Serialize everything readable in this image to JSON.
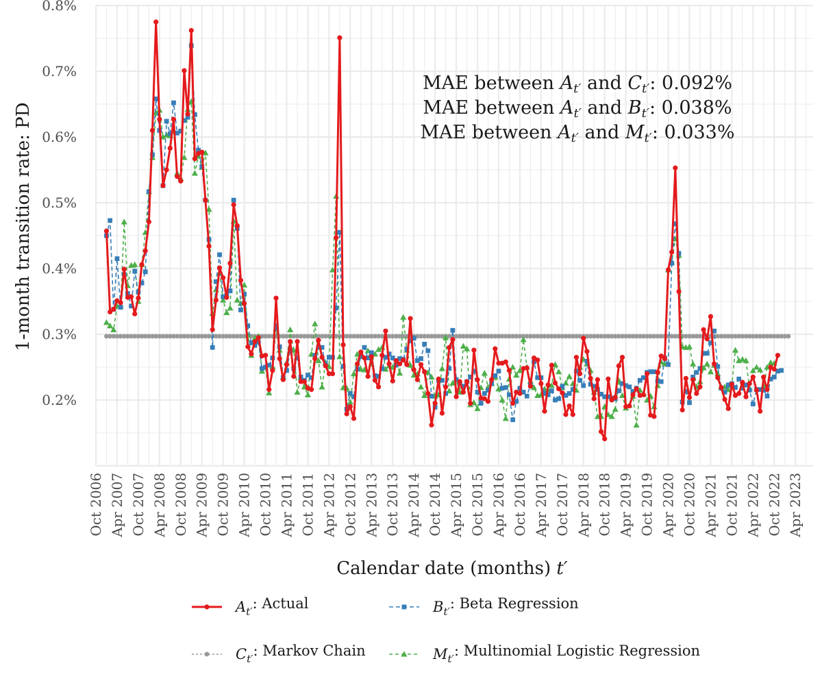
{
  "chart_data": {
    "type": "line",
    "title": "",
    "xlabel": "Calendar date (months) t′",
    "ylabel": "1-month transition rate: PD",
    "ylim": [
      0.1,
      0.8
    ],
    "y_ticks": [
      0.2,
      0.3,
      0.4,
      0.5,
      0.6,
      0.7,
      0.8
    ],
    "y_tick_labels": [
      "0.2%",
      "0.3%",
      "0.4%",
      "0.5%",
      "0.6%",
      "0.7%",
      "0.8%"
    ],
    "x_range_months": [
      -3,
      200
    ],
    "x_start": "Jan 2007",
    "x_ticks": [
      -3,
      3,
      9,
      15,
      21,
      27,
      33,
      39,
      45,
      51,
      57,
      63,
      69,
      75,
      81,
      87,
      93,
      99,
      105,
      111,
      117,
      123,
      129,
      135,
      141,
      147,
      153,
      159,
      165,
      171,
      177,
      183,
      189,
      195
    ],
    "x_tick_labels": [
      "Oct 2006",
      "Apr 2007",
      "Oct 2007",
      "Apr 2008",
      "Oct 2008",
      "Apr 2009",
      "Oct 2009",
      "Apr 2010",
      "Oct 2010",
      "Apr 2011",
      "Oct 2011",
      "Apr 2012",
      "Oct 2012",
      "Apr 2013",
      "Oct 2013",
      "Apr 2014",
      "Oct 2014",
      "Apr 2015",
      "Oct 2015",
      "Apr 2016",
      "Oct 2016",
      "Apr 2017",
      "Oct 2017",
      "Apr 2018",
      "Oct 2018",
      "Apr 2019",
      "Oct 2019",
      "Apr 2020",
      "Oct 2020",
      "Apr 2021",
      "Oct 2021",
      "Apr 2022",
      "Oct 2022",
      "Apr 2023"
    ],
    "annotations": [
      {
        "prefix": "MAE between ",
        "a_sym": "A",
        "mid": " and ",
        "b_sym": "C",
        "suffix": ": 0.092%"
      },
      {
        "prefix": "MAE between ",
        "a_sym": "A",
        "mid": " and ",
        "b_sym": "B",
        "suffix": ": 0.038%"
      },
      {
        "prefix": "MAE between ",
        "a_sym": "A",
        "mid": " and ",
        "b_sym": "M",
        "suffix": ": 0.033%"
      }
    ],
    "subscript": "t′",
    "series": [
      {
        "name": "Actual",
        "symbol": "A",
        "legend": ": Actual",
        "color": "#e41a1c",
        "dash": "solid",
        "marker": "circle",
        "values": [
          0.457,
          0.334,
          0.338,
          0.351,
          0.348,
          0.399,
          0.356,
          0.357,
          0.331,
          0.355,
          0.406,
          0.427,
          0.471,
          0.61,
          0.775,
          0.627,
          0.526,
          0.55,
          0.583,
          0.627,
          0.54,
          0.533,
          0.701,
          0.635,
          0.762,
          0.567,
          0.575,
          0.577,
          0.504,
          0.434,
          0.307,
          0.352,
          0.401,
          0.386,
          0.356,
          0.408,
          0.497,
          0.465,
          0.382,
          0.347,
          0.281,
          0.27,
          0.289,
          0.295,
          0.267,
          0.268,
          0.216,
          0.245,
          0.355,
          0.263,
          0.231,
          0.254,
          0.289,
          0.236,
          0.289,
          0.228,
          0.228,
          0.218,
          0.216,
          0.263,
          0.291,
          0.265,
          0.252,
          0.24,
          0.24,
          0.447,
          0.751,
          0.284,
          0.179,
          0.19,
          0.172,
          0.255,
          0.273,
          0.264,
          0.236,
          0.266,
          0.23,
          0.22,
          0.268,
          0.305,
          0.255,
          0.229,
          0.26,
          0.255,
          0.261,
          0.254,
          0.324,
          0.246,
          0.231,
          0.254,
          0.243,
          0.21,
          0.162,
          0.195,
          0.232,
          0.18,
          0.22,
          0.28,
          0.292,
          0.205,
          0.228,
          0.212,
          0.228,
          0.195,
          0.276,
          0.231,
          0.203,
          0.202,
          0.198,
          0.231,
          0.278,
          0.256,
          0.256,
          0.258,
          0.245,
          0.195,
          0.212,
          0.21,
          0.248,
          0.249,
          0.221,
          0.264,
          0.261,
          0.225,
          0.183,
          0.223,
          0.253,
          0.226,
          0.217,
          0.211,
          0.178,
          0.191,
          0.178,
          0.265,
          0.24,
          0.294,
          0.274,
          0.233,
          0.202,
          0.231,
          0.152,
          0.141,
          0.232,
          0.2,
          0.204,
          0.252,
          0.265,
          0.19,
          0.191,
          0.208,
          0.217,
          0.207,
          0.208,
          0.24,
          0.177,
          0.175,
          0.242,
          0.267,
          0.263,
          0.398,
          0.425,
          0.553,
          0.365,
          0.185,
          0.233,
          0.204,
          0.231,
          0.21,
          0.22,
          0.307,
          0.293,
          0.327,
          0.255,
          0.234,
          0.219,
          0.201,
          0.187,
          0.224,
          0.207,
          0.21,
          0.227,
          0.205,
          0.225,
          0.235,
          0.215,
          0.183,
          0.235,
          0.216,
          0.25,
          0.247,
          0.268
        ]
      },
      {
        "name": "Beta Regression",
        "symbol": "B",
        "legend": ": Beta Regression",
        "color": "#377eb8",
        "dash": "6,4",
        "marker": "square",
        "values": [
          0.45,
          0.473,
          0.338,
          0.415,
          0.341,
          0.391,
          0.362,
          0.343,
          0.396,
          0.364,
          0.378,
          0.395,
          0.517,
          0.573,
          0.658,
          0.61,
          0.526,
          0.624,
          0.605,
          0.652,
          0.606,
          0.609,
          0.625,
          0.63,
          0.739,
          0.634,
          0.58,
          0.555,
          0.504,
          0.444,
          0.28,
          0.38,
          0.421,
          0.357,
          0.359,
          0.366,
          0.504,
          0.461,
          0.337,
          0.361,
          0.313,
          0.287,
          0.283,
          0.288,
          0.248,
          0.25,
          0.253,
          0.264,
          0.313,
          0.281,
          0.234,
          0.245,
          0.276,
          0.248,
          0.264,
          0.235,
          0.23,
          0.238,
          0.234,
          0.268,
          0.28,
          0.28,
          0.254,
          0.265,
          0.265,
          0.34,
          0.455,
          0.251,
          0.186,
          0.21,
          0.205,
          0.247,
          0.266,
          0.28,
          0.264,
          0.272,
          0.237,
          0.236,
          0.248,
          0.265,
          0.27,
          0.264,
          0.253,
          0.263,
          0.262,
          0.278,
          0.29,
          0.294,
          0.26,
          0.263,
          0.285,
          0.275,
          0.206,
          0.189,
          0.23,
          0.23,
          0.21,
          0.248,
          0.306,
          0.231,
          0.225,
          0.221,
          0.228,
          0.235,
          0.244,
          0.212,
          0.195,
          0.21,
          0.215,
          0.225,
          0.237,
          0.244,
          0.218,
          0.219,
          0.208,
          0.17,
          0.198,
          0.218,
          0.212,
          0.206,
          0.223,
          0.258,
          0.234,
          0.234,
          0.21,
          0.208,
          0.214,
          0.2,
          0.202,
          0.221,
          0.207,
          0.21,
          0.216,
          0.244,
          0.23,
          0.222,
          0.259,
          0.224,
          0.221,
          0.216,
          0.209,
          0.205,
          0.205,
          0.203,
          0.202,
          0.214,
          0.225,
          0.222,
          0.22,
          0.213,
          0.218,
          0.23,
          0.234,
          0.242,
          0.243,
          0.243,
          0.229,
          0.228,
          0.264,
          0.254,
          0.408,
          0.468,
          0.423,
          0.197,
          0.213,
          0.196,
          0.235,
          0.242,
          0.248,
          0.271,
          0.271,
          0.287,
          0.305,
          0.251,
          0.218,
          0.212,
          0.223,
          0.225,
          0.219,
          0.232,
          0.218,
          0.223,
          0.215,
          0.194,
          0.216,
          0.216,
          0.215,
          0.206,
          0.232,
          0.235,
          0.244,
          0.245
        ]
      },
      {
        "name": "Markov Chain",
        "symbol": "C",
        "legend": ": Markov Chain",
        "color": "#999999",
        "dash": "3,3",
        "marker": "circle-small",
        "constant": 0.297
      },
      {
        "name": "Multinomial Logistic Regression",
        "symbol": "M",
        "legend": ": Multinomial Logistic Regression",
        "color": "#4daf4a",
        "dash": "5,4",
        "marker": "triangle",
        "values": [
          0.318,
          0.313,
          0.307,
          0.343,
          0.344,
          0.471,
          0.374,
          0.405,
          0.406,
          0.35,
          0.406,
          0.455,
          0.517,
          0.569,
          0.637,
          0.641,
          0.6,
          0.603,
          0.602,
          0.609,
          0.545,
          0.537,
          0.569,
          0.642,
          0.654,
          0.545,
          0.571,
          0.554,
          0.576,
          0.49,
          0.332,
          0.368,
          0.393,
          0.352,
          0.333,
          0.34,
          0.472,
          0.352,
          0.347,
          0.375,
          0.299,
          0.268,
          0.294,
          0.297,
          0.244,
          0.25,
          0.211,
          0.251,
          0.309,
          0.276,
          0.235,
          0.257,
          0.307,
          0.276,
          0.212,
          0.234,
          0.22,
          0.208,
          0.27,
          0.316,
          0.26,
          0.22,
          0.257,
          0.251,
          0.398,
          0.51,
          0.266,
          0.219,
          0.218,
          0.197,
          0.24,
          0.27,
          0.247,
          0.246,
          0.275,
          0.255,
          0.27,
          0.277,
          0.28,
          0.247,
          0.252,
          0.25,
          0.258,
          0.241,
          0.326,
          0.276,
          0.253,
          0.238,
          0.24,
          0.22,
          0.207,
          0.242,
          0.235,
          0.206,
          0.208,
          0.248,
          0.295,
          0.214,
          0.226,
          0.232,
          0.212,
          0.282,
          0.278,
          0.193,
          0.196,
          0.187,
          0.219,
          0.241,
          0.22,
          0.225,
          0.235,
          0.217,
          0.2,
          0.172,
          0.232,
          0.25,
          0.238,
          0.245,
          0.292,
          0.25,
          0.229,
          0.219,
          0.207,
          0.208,
          0.217,
          0.215,
          0.222,
          0.254,
          0.243,
          0.219,
          0.226,
          0.236,
          0.225,
          0.215,
          0.25,
          0.262,
          0.255,
          0.245,
          0.212,
          0.175,
          0.175,
          0.19,
          0.178,
          0.175,
          0.186,
          0.23,
          0.207,
          0.188,
          0.192,
          0.206,
          0.162,
          0.215,
          0.21,
          0.2,
          0.206,
          0.19,
          0.222,
          0.258,
          0.255,
          0.398,
          0.41,
          0.445,
          0.42,
          0.281,
          0.28,
          0.281,
          0.255,
          0.22,
          0.228,
          0.249,
          0.255,
          0.243,
          0.253,
          0.24,
          0.22,
          0.22,
          0.216,
          0.222,
          0.276,
          0.26,
          0.262,
          0.26,
          0.218,
          0.245,
          0.25,
          0.246,
          0.222,
          0.25,
          0.257,
          0.256
        ]
      }
    ]
  }
}
